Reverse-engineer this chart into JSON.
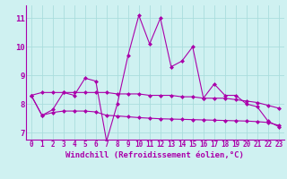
{
  "xlabel": "Windchill (Refroidissement éolien,°C)",
  "bg_color": "#cff1f1",
  "grid_color": "#aadddd",
  "line_color": "#aa00aa",
  "xlim": [
    -0.5,
    23.5
  ],
  "ylim": [
    6.75,
    11.45
  ],
  "xticks": [
    0,
    1,
    2,
    3,
    4,
    5,
    6,
    7,
    8,
    9,
    10,
    11,
    12,
    13,
    14,
    15,
    16,
    17,
    18,
    19,
    20,
    21,
    22,
    23
  ],
  "yticks": [
    7,
    8,
    9,
    10,
    11
  ],
  "line1_x": [
    0,
    1,
    2,
    3,
    4,
    5,
    6,
    7,
    8,
    9,
    10,
    11,
    12,
    13,
    14,
    15,
    16,
    17,
    18,
    19,
    20,
    21,
    22,
    23
  ],
  "line1_y": [
    8.3,
    7.6,
    7.8,
    8.4,
    8.3,
    8.9,
    8.8,
    6.7,
    8.0,
    9.7,
    11.1,
    10.1,
    11.0,
    9.3,
    9.5,
    10.0,
    8.2,
    8.7,
    8.3,
    8.3,
    8.0,
    7.9,
    7.4,
    7.2
  ],
  "line2_x": [
    0,
    1,
    2,
    3,
    4,
    5,
    6,
    7,
    8,
    9,
    10,
    11,
    12,
    13,
    14,
    15,
    16,
    17,
    18,
    19,
    20,
    21,
    22,
    23
  ],
  "line2_y": [
    8.3,
    8.4,
    8.4,
    8.4,
    8.4,
    8.4,
    8.4,
    8.4,
    8.35,
    8.35,
    8.35,
    8.3,
    8.3,
    8.3,
    8.25,
    8.25,
    8.2,
    8.2,
    8.2,
    8.15,
    8.1,
    8.05,
    7.95,
    7.85
  ],
  "line3_x": [
    0,
    1,
    2,
    3,
    4,
    5,
    6,
    7,
    8,
    9,
    10,
    11,
    12,
    13,
    14,
    15,
    16,
    17,
    18,
    19,
    20,
    21,
    22,
    23
  ],
  "line3_y": [
    8.3,
    7.6,
    7.7,
    7.75,
    7.75,
    7.75,
    7.72,
    7.6,
    7.58,
    7.55,
    7.52,
    7.5,
    7.48,
    7.47,
    7.46,
    7.45,
    7.44,
    7.43,
    7.42,
    7.41,
    7.4,
    7.38,
    7.35,
    7.25
  ],
  "marker": "D",
  "markersize": 2.5,
  "linewidth": 0.8,
  "tick_fontsize": 5.5,
  "label_fontsize": 6.5
}
